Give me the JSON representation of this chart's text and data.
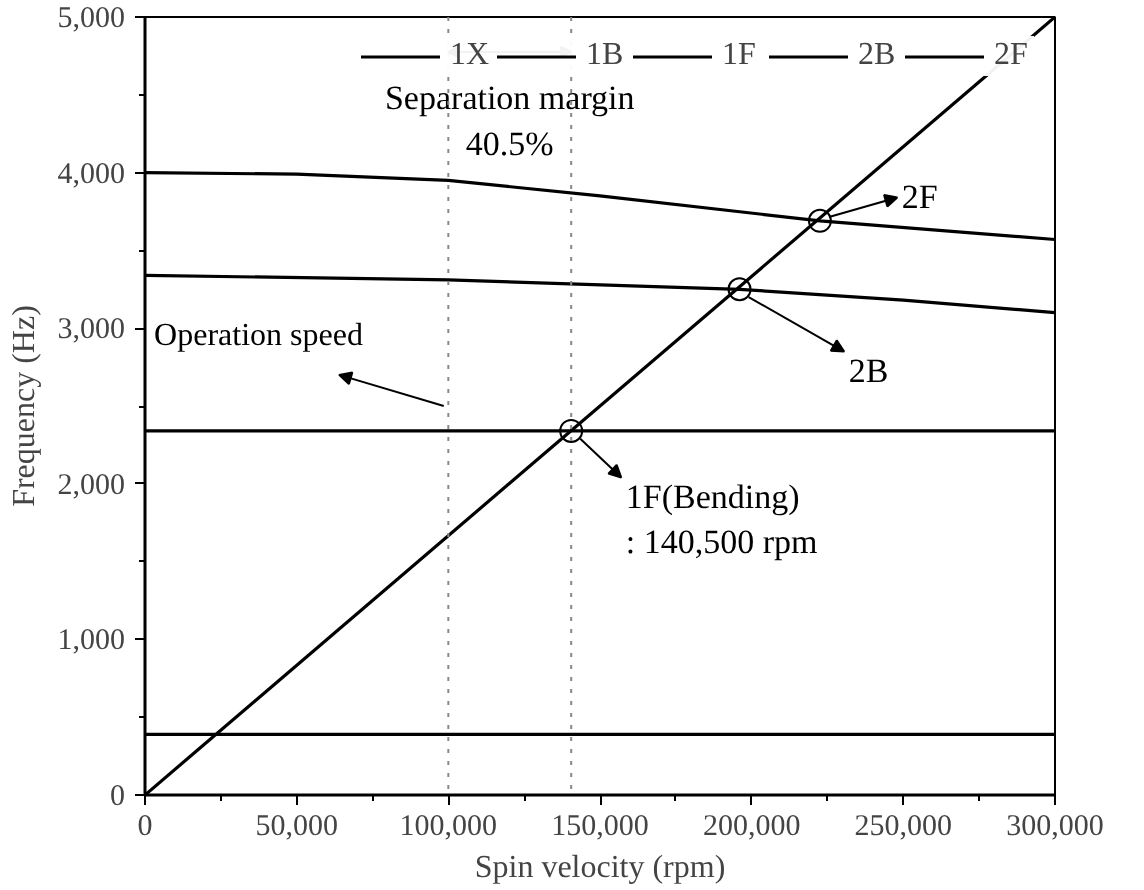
{
  "chart_data": {
    "type": "line",
    "xlabel": "Spin velocity (rpm)",
    "ylabel": "Frequency (Hz)",
    "xlim": [
      0,
      300000
    ],
    "ylim": [
      0,
      5000
    ],
    "xticks": [
      {
        "value": 0,
        "label": "0"
      },
      {
        "value": 50000,
        "label": "50,000"
      },
      {
        "value": 100000,
        "label": "100,000"
      },
      {
        "value": 150000,
        "label": "150,000"
      },
      {
        "value": 200000,
        "label": "200,000"
      },
      {
        "value": 250000,
        "label": "250,000"
      },
      {
        "value": 300000,
        "label": "300,000"
      }
    ],
    "yticks": [
      {
        "value": 0,
        "label": "0"
      },
      {
        "value": 1000,
        "label": "1,000"
      },
      {
        "value": 2000,
        "label": "2,000"
      },
      {
        "value": 3000,
        "label": "3,000"
      },
      {
        "value": 4000,
        "label": "4,000"
      },
      {
        "value": 5000,
        "label": "5,000"
      }
    ],
    "series": [
      {
        "name": "1X",
        "color": "#000000",
        "x": [
          0,
          300000
        ],
        "values": [
          0,
          5000
        ]
      },
      {
        "name": "1B",
        "color": "#000000",
        "x": [
          0,
          300000
        ],
        "values": [
          390,
          390
        ]
      },
      {
        "name": "1F",
        "color": "#000000",
        "x": [
          0,
          300000
        ],
        "values": [
          2340,
          2340
        ]
      },
      {
        "name": "2B",
        "color": "#000000",
        "x": [
          0,
          100000,
          196000,
          250000,
          300000
        ],
        "values": [
          3340,
          3310,
          3250,
          3180,
          3100
        ]
      },
      {
        "name": "2F",
        "color": "#000000",
        "x": [
          0,
          50000,
          100000,
          150000,
          222500,
          300000
        ],
        "values": [
          4000,
          3990,
          3950,
          3850,
          3690,
          3570
        ]
      }
    ],
    "ref_lines": [
      {
        "axis": "x",
        "value": 100000,
        "label": "Operation speed",
        "line_style": "dotted",
        "color": "#888888"
      },
      {
        "axis": "x",
        "value": 140500,
        "line_style": "dotted",
        "color": "#888888"
      }
    ],
    "annotations": [
      "Separation margin\n40.5%",
      {
        "text": "2F",
        "x": 222500,
        "y": 3690
      },
      {
        "text": "2B",
        "x": 196000,
        "y": 3250
      },
      {
        "text": "1F(Bending)\n: 140,500 rpm",
        "x": 140500,
        "y": 2340
      }
    ],
    "legend": "top",
    "grid": false,
    "line_style": "solid",
    "marker": "none"
  }
}
